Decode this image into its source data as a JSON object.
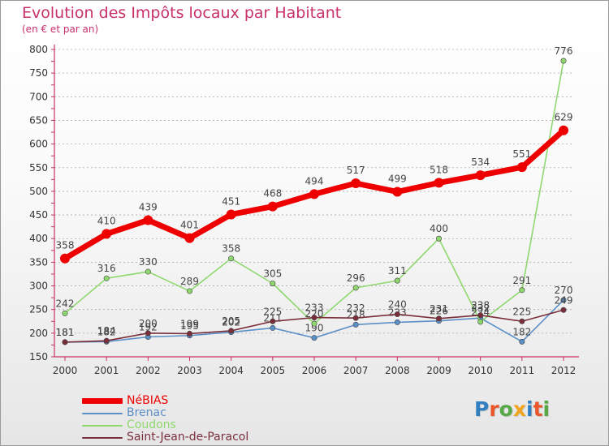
{
  "header": {
    "title": "Evolution des Impôts locaux par Habitant",
    "subtitle": "(en € et par an)"
  },
  "logo": {
    "text": "Proxiti",
    "letter_colors": [
      "#2f7fc1",
      "#e8562a",
      "#55a845",
      "#f0a31b",
      "#2f7fc1",
      "#e8562a",
      "#55a845"
    ]
  },
  "colors": {
    "title": "#c8316a",
    "axis": "#c8316a",
    "grid": "#a9a9a9",
    "value_labels": "#444444"
  },
  "chart_data": {
    "type": "line",
    "title": "Evolution des Impôts locaux par Habitant",
    "subtitle": "(en € et par an)",
    "x": [
      2000,
      2001,
      2002,
      2003,
      2004,
      2005,
      2006,
      2007,
      2008,
      2009,
      2010,
      2011,
      2012
    ],
    "ylim": [
      150,
      800
    ],
    "yticks": [
      150,
      200,
      250,
      300,
      350,
      400,
      450,
      500,
      550,
      600,
      650,
      700,
      750,
      800
    ],
    "grid": "horizontal dashed",
    "legend_position": "bottom-left",
    "series": [
      {
        "name": "Brenac",
        "color": "#5b8fc7",
        "values": [
          181,
          182,
          192,
          195,
          202,
          211,
          190,
          218,
          223,
          226,
          232,
          182,
          270
        ],
        "labels": [
          "181",
          "182",
          "192",
          "195",
          "202",
          "211",
          "190",
          "218",
          "223",
          "226",
          "232",
          "182",
          "270"
        ]
      },
      {
        "name": "Coudons",
        "color": "#8fd86f",
        "values": [
          242,
          316,
          330,
          289,
          358,
          305,
          220,
          296,
          311,
          400,
          224,
          291,
          776
        ],
        "labels": [
          "242",
          "316",
          "330",
          "289",
          "358",
          "305",
          "220",
          "296",
          "311",
          "400",
          "224",
          "291",
          "776"
        ]
      },
      {
        "name": "Saint-Jean-de-Paracol",
        "color": "#7a2e3a",
        "values": [
          181,
          184,
          200,
          199,
          205,
          225,
          233,
          232,
          240,
          231,
          238,
          225,
          249
        ],
        "labels": [
          "181",
          "184",
          "200",
          "199",
          "205",
          "225",
          "233",
          "232",
          "240",
          "231",
          "238",
          "225",
          "249"
        ]
      },
      {
        "name": "NéBIAS",
        "color": "#ee0000",
        "values": [
          358,
          410,
          439,
          401,
          451,
          468,
          494,
          517,
          499,
          518,
          534,
          551,
          629
        ],
        "labels": [
          "358",
          "410",
          "439",
          "401",
          "451",
          "468",
          "494",
          "517",
          "499",
          "518",
          "534",
          "551",
          "629"
        ]
      }
    ]
  },
  "legend": {
    "items": [
      {
        "label": "NéBIAS",
        "color": "#ee0000"
      },
      {
        "label": "Brenac",
        "color": "#5b8fc7"
      },
      {
        "label": "Coudons",
        "color": "#8fd86f"
      },
      {
        "label": "Saint-Jean-de-Paracol",
        "color": "#7a2e3a"
      }
    ]
  }
}
